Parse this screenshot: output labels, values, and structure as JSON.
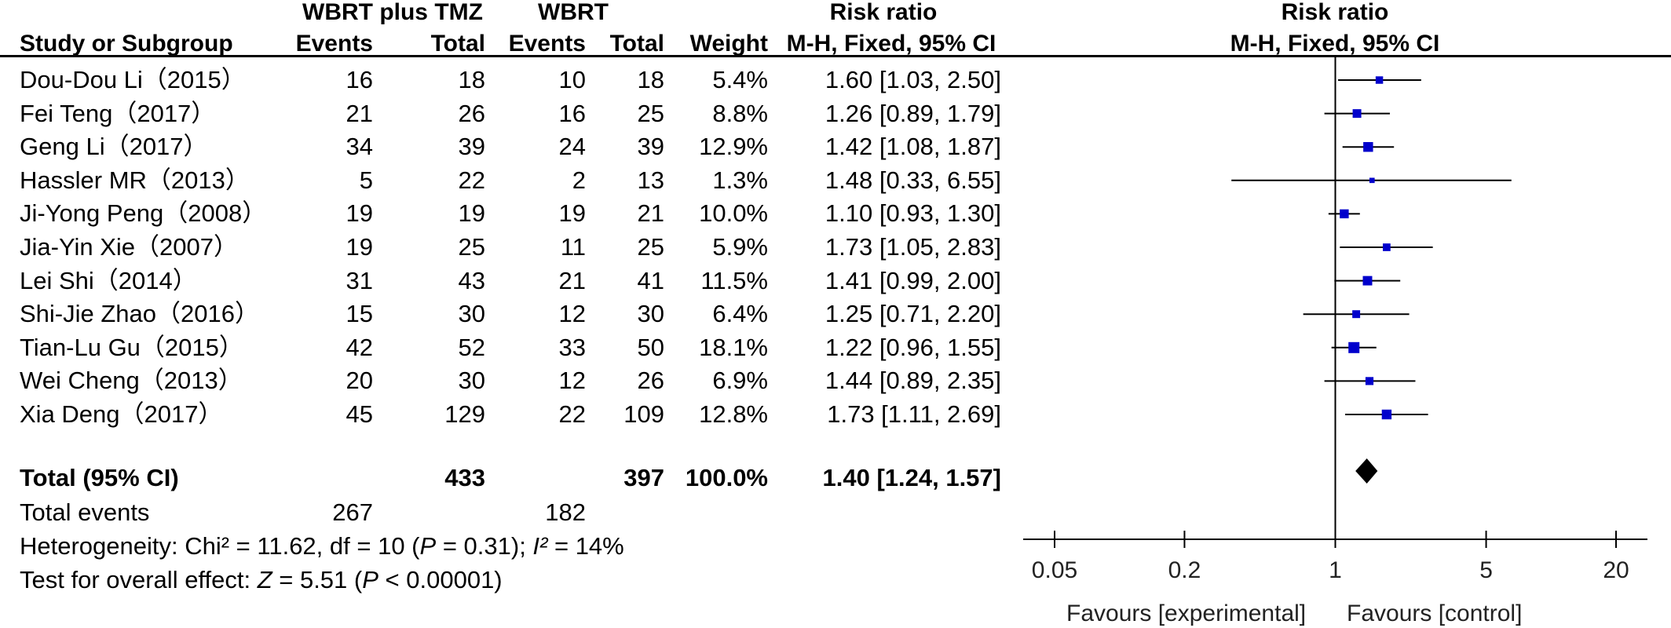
{
  "headers": {
    "group1": "WBRT plus TMZ",
    "group2": "WBRT",
    "risk_ratio_table": "Risk ratio",
    "risk_ratio_plot": "Risk ratio",
    "study": "Study or Subgroup",
    "events1": "Events",
    "total1": "Total",
    "events2": "Events",
    "total2": "Total",
    "weight": "Weight",
    "method_table": "M-H, Fixed, 95% CI",
    "method_plot": "M-H, Fixed, 95% CI"
  },
  "studies": [
    {
      "name": "Dou-Dou Li（2015）",
      "e1": "16",
      "t1": "18",
      "e2": "10",
      "t2": "18",
      "weight": "5.4%",
      "ci": "1.60 [1.03, 2.50]"
    },
    {
      "name": "Fei Teng（2017）",
      "e1": "21",
      "t1": "26",
      "e2": "16",
      "t2": "25",
      "weight": "8.8%",
      "ci": "1.26 [0.89, 1.79]"
    },
    {
      "name": "Geng Li（2017）",
      "e1": "34",
      "t1": "39",
      "e2": "24",
      "t2": "39",
      "weight": "12.9%",
      "ci": "1.42 [1.08, 1.87]"
    },
    {
      "name": "Hassler MR（2013）",
      "e1": "5",
      "t1": "22",
      "e2": "2",
      "t2": "13",
      "weight": "1.3%",
      "ci": "1.48 [0.33, 6.55]"
    },
    {
      "name": "Ji-Yong Peng（2008）",
      "e1": "19",
      "t1": "19",
      "e2": "19",
      "t2": "21",
      "weight": "10.0%",
      "ci": "1.10 [0.93, 1.30]"
    },
    {
      "name": "Jia-Yin Xie（2007）",
      "e1": "19",
      "t1": "25",
      "e2": "11",
      "t2": "25",
      "weight": "5.9%",
      "ci": "1.73 [1.05, 2.83]"
    },
    {
      "name": "Lei Shi（2014）",
      "e1": "31",
      "t1": "43",
      "e2": "21",
      "t2": "41",
      "weight": "11.5%",
      "ci": "1.41 [0.99, 2.00]"
    },
    {
      "name": "Shi-Jie Zhao（2016）",
      "e1": "15",
      "t1": "30",
      "e2": "12",
      "t2": "30",
      "weight": "6.4%",
      "ci": "1.25 [0.71, 2.20]"
    },
    {
      "name": "Tian-Lu Gu（2015）",
      "e1": "42",
      "t1": "52",
      "e2": "33",
      "t2": "50",
      "weight": "18.1%",
      "ci": "1.22 [0.96, 1.55]"
    },
    {
      "name": "Wei Cheng（2013）",
      "e1": "20",
      "t1": "30",
      "e2": "12",
      "t2": "26",
      "weight": "6.9%",
      "ci": "1.44 [0.89, 2.35]"
    },
    {
      "name": "Xia Deng（2017）",
      "e1": "45",
      "t1": "129",
      "e2": "22",
      "t2": "109",
      "weight": "12.8%",
      "ci": "1.73 [1.11, 2.69]"
    }
  ],
  "total": {
    "label": "Total (95% CI)",
    "t1": "433",
    "t2": "397",
    "weight": "100.0%",
    "ci": "1.40 [1.24, 1.57]",
    "events_label": "Total events",
    "events1": "267",
    "events2": "182"
  },
  "stats": {
    "heterogeneity_prefix": "Heterogeneity: Chi² = 11.62, df = 10 (",
    "heterogeneity_p_label": "P",
    "heterogeneity_mid": " = 0.31); ",
    "heterogeneity_i_label": "I²",
    "heterogeneity_suffix": " = 14%",
    "overall_prefix": "Test for overall effect: ",
    "overall_z_label": "Z",
    "overall_mid": " = 5.51 (",
    "overall_p_label": "P",
    "overall_suffix": " < 0.00001)"
  },
  "axis": {
    "favours_left": "Favours [experimental]",
    "favours_right": "Favours [control]"
  },
  "chart_data": {
    "type": "forest",
    "scale": "log",
    "xlim": [
      0.05,
      20
    ],
    "ticks": [
      {
        "value": 0.05,
        "label": "0.05"
      },
      {
        "value": 0.2,
        "label": "0.2"
      },
      {
        "value": 1,
        "label": "1"
      },
      {
        "value": 5,
        "label": "5"
      },
      {
        "value": 20,
        "label": "20"
      }
    ],
    "reference_line": 1,
    "marker_color": "#0000cc",
    "points": [
      {
        "rr": 1.6,
        "lo": 1.03,
        "hi": 2.5,
        "weight": 5.4
      },
      {
        "rr": 1.26,
        "lo": 0.89,
        "hi": 1.79,
        "weight": 8.8
      },
      {
        "rr": 1.42,
        "lo": 1.08,
        "hi": 1.87,
        "weight": 12.9
      },
      {
        "rr": 1.48,
        "lo": 0.33,
        "hi": 6.55,
        "weight": 1.3
      },
      {
        "rr": 1.1,
        "lo": 0.93,
        "hi": 1.3,
        "weight": 10.0
      },
      {
        "rr": 1.73,
        "lo": 1.05,
        "hi": 2.83,
        "weight": 5.9
      },
      {
        "rr": 1.41,
        "lo": 0.99,
        "hi": 2.0,
        "weight": 11.5
      },
      {
        "rr": 1.25,
        "lo": 0.71,
        "hi": 2.2,
        "weight": 6.4
      },
      {
        "rr": 1.22,
        "lo": 0.96,
        "hi": 1.55,
        "weight": 18.1
      },
      {
        "rr": 1.44,
        "lo": 0.89,
        "hi": 2.35,
        "weight": 6.9
      },
      {
        "rr": 1.73,
        "lo": 1.11,
        "hi": 2.69,
        "weight": 12.8
      }
    ],
    "pooled": {
      "rr": 1.4,
      "lo": 1.24,
      "hi": 1.57
    }
  }
}
